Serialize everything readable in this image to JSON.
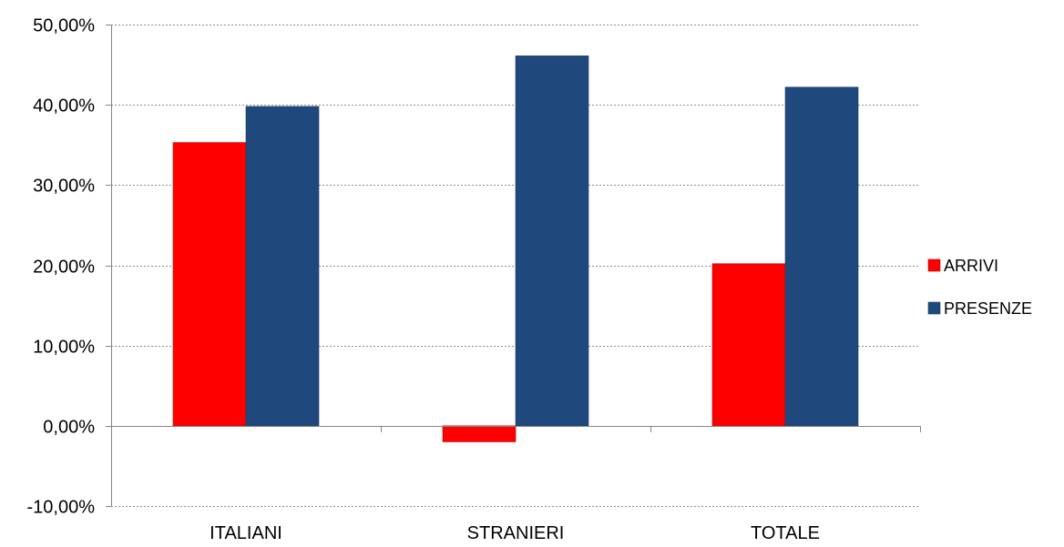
{
  "chart_data": {
    "type": "bar",
    "categories": [
      "ITALIANI",
      "STRANIERI",
      "TOTALE"
    ],
    "series": [
      {
        "name": "ARRIVI",
        "values": [
          35.3,
          -2.0,
          20.2
        ],
        "color": "#ff0000"
      },
      {
        "name": "PRESENZE",
        "values": [
          39.8,
          46.1,
          42.2
        ],
        "color": "#1f497d"
      }
    ],
    "ylim": [
      -10,
      50
    ],
    "yticks": [
      -10,
      0,
      10,
      20,
      30,
      40,
      50
    ],
    "ytick_labels": [
      "-10,00%",
      "0,00%",
      "10,00%",
      "20,00%",
      "30,00%",
      "40,00%",
      "50,00%"
    ],
    "grid": true,
    "legend_position": "right"
  }
}
